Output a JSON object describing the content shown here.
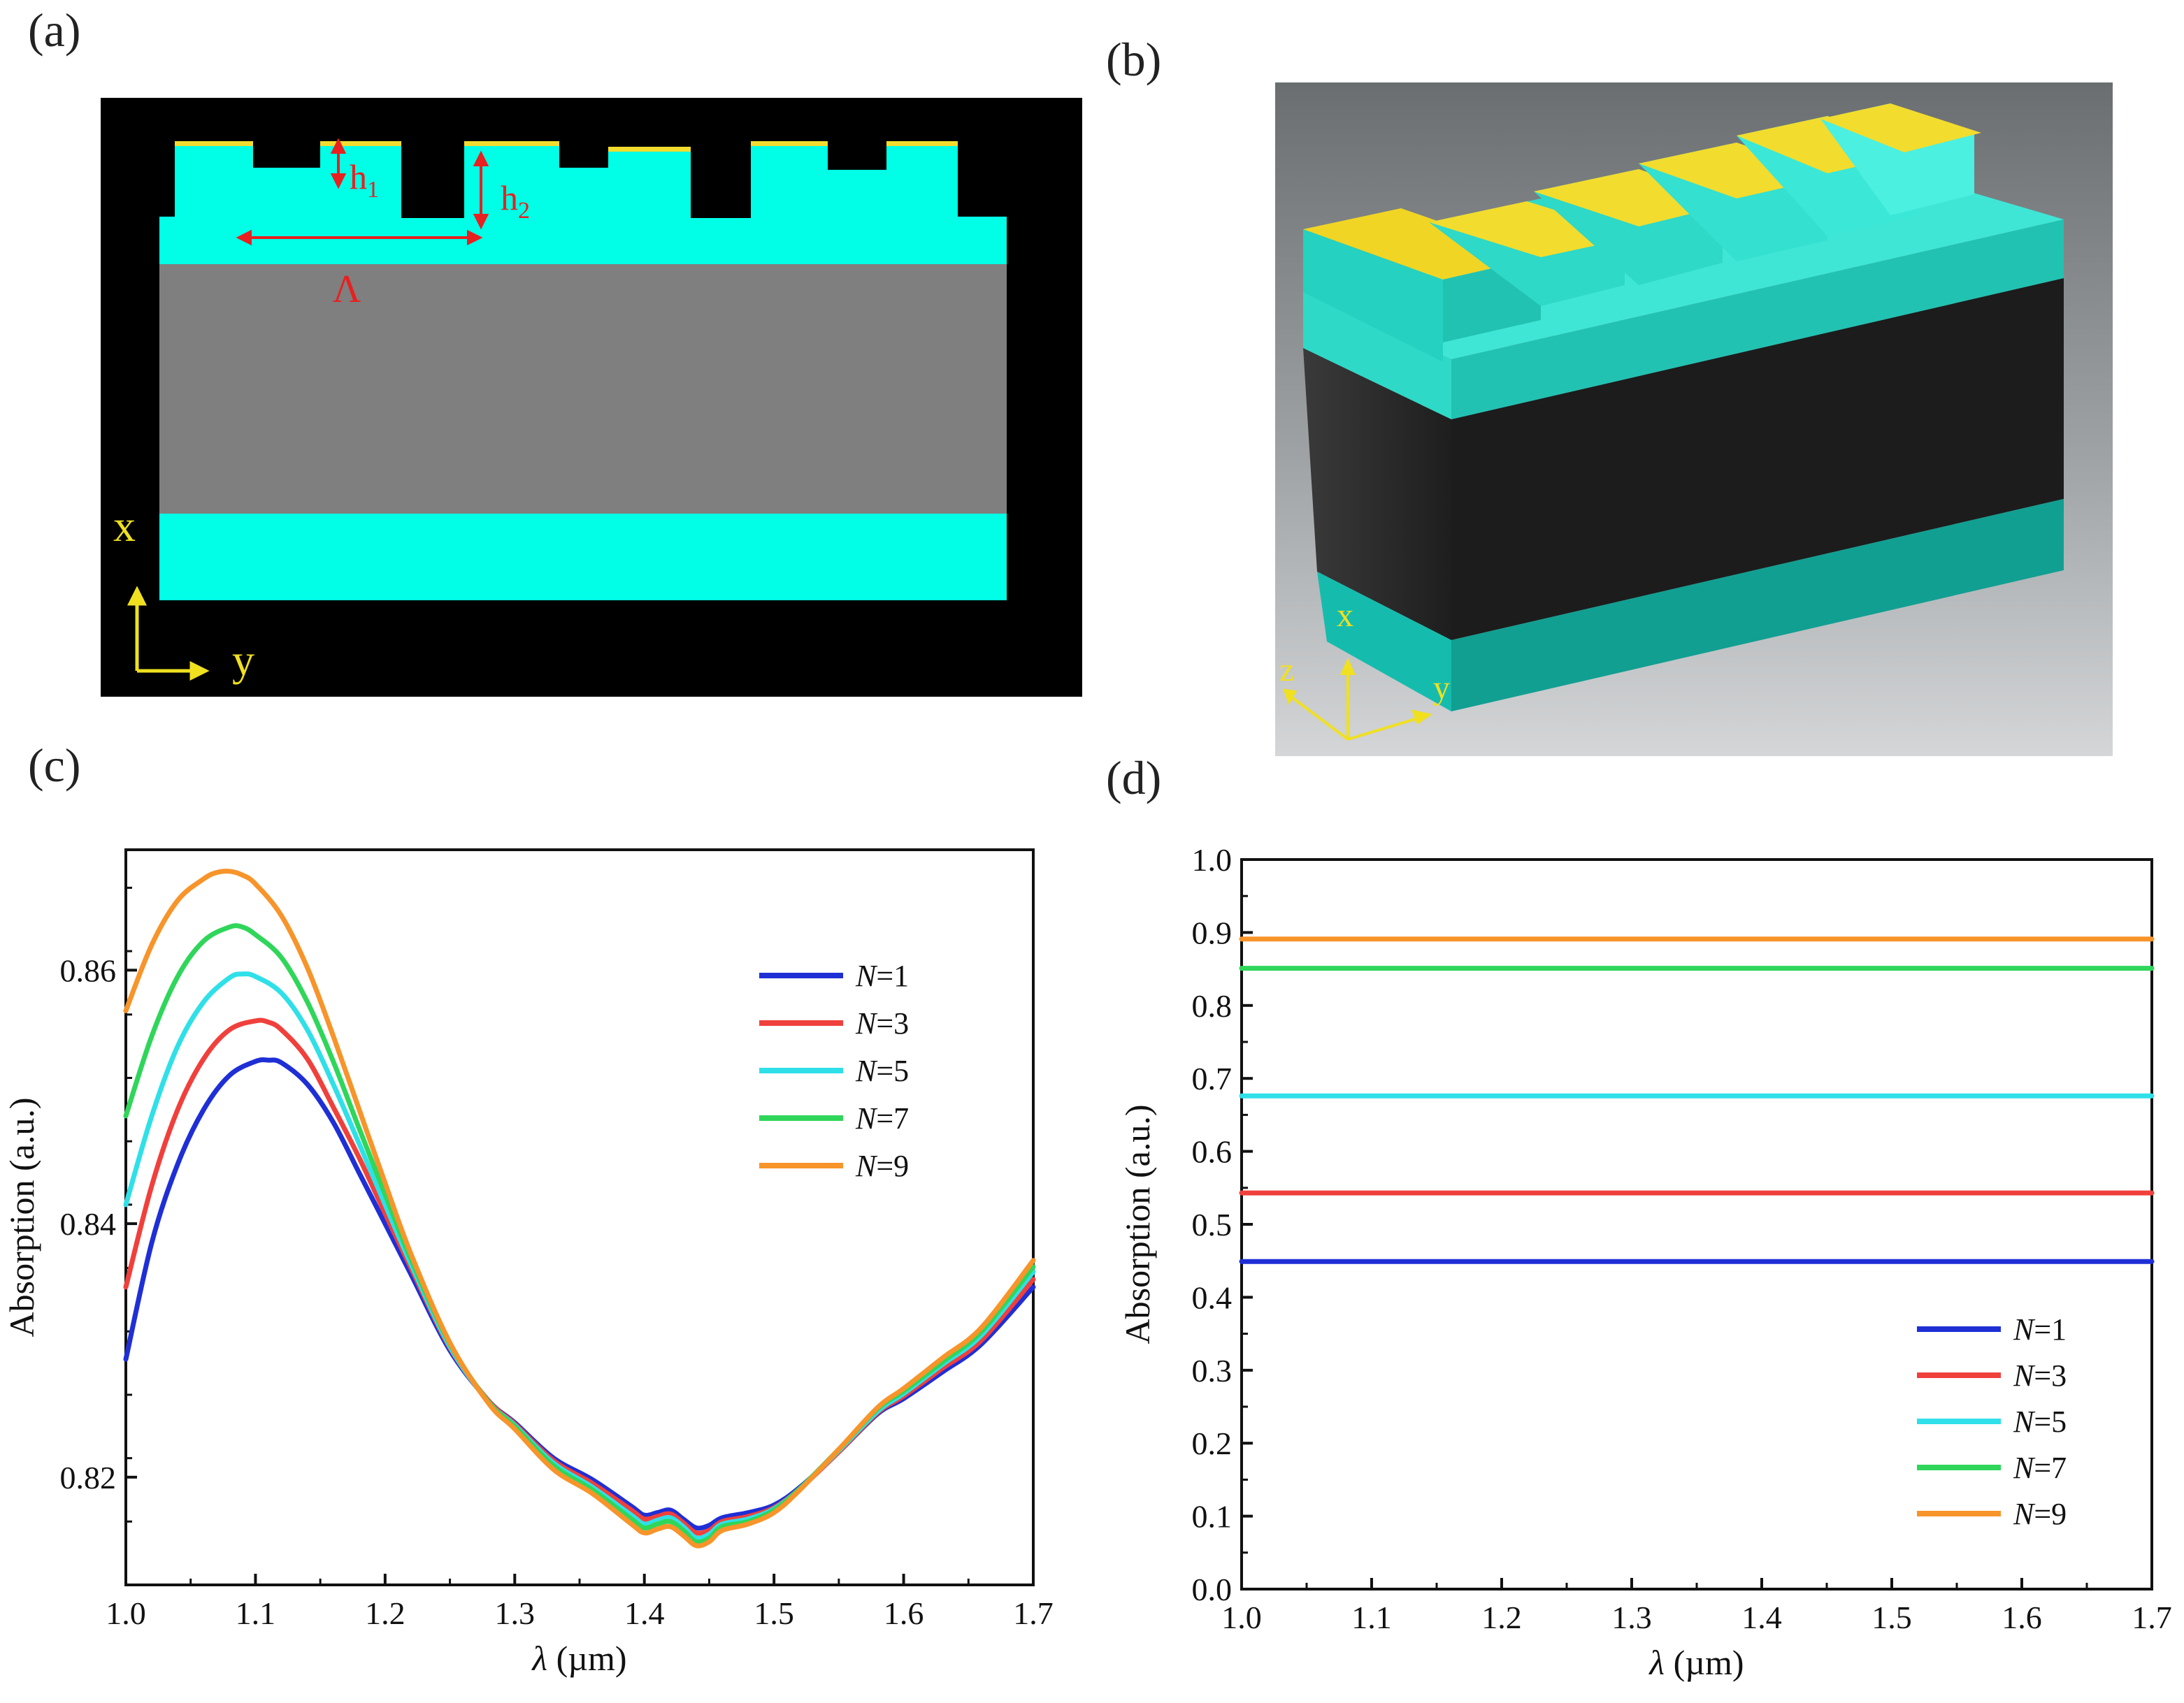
{
  "panels": {
    "a": {
      "label": "(a)",
      "annotations": {
        "h1": "h",
        "h1_sub": "1",
        "h2": "h",
        "h2_sub": "2",
        "period": "Λ",
        "x_axis": "x",
        "y_axis": "y"
      }
    },
    "b": {
      "label": "(b)",
      "annotations": {
        "x_axis": "x",
        "y_axis": "y",
        "z_axis": "z"
      }
    },
    "c": {
      "label": "(c)"
    },
    "d": {
      "label": "(d)"
    }
  },
  "colors": {
    "N1": "#1f2fd6",
    "N3": "#f0403c",
    "N5": "#2fe0e8",
    "N7": "#2fd65a",
    "N9": "#f7942a",
    "cyan": "#00ffe6",
    "gold": "#f2dc2e",
    "gray_core": "#808080",
    "black_core": "#1e1e1e",
    "annot_red": "#e82020",
    "annot_yellow": "#f0e020"
  },
  "chart_data": [
    {
      "id": "c",
      "type": "line",
      "title": "",
      "xlabel_sym": "λ",
      "xlabel_unit": " (µm)",
      "ylabel": "Absorption (a.u.)",
      "xlim": [
        1.0,
        1.7
      ],
      "ylim": [
        0.8115,
        0.8695
      ],
      "xticks": [
        "1.0",
        "1.1",
        "1.2",
        "1.3",
        "1.4",
        "1.5",
        "1.6",
        "1.7"
      ],
      "yticks": [
        0.82,
        0.84,
        0.86
      ],
      "ytick_labels": [
        "0.82",
        "0.84",
        "0.86"
      ],
      "legend_position": "right-upper",
      "series": [
        {
          "name": "N=1",
          "legend_n": "N",
          "legend_val": "=1",
          "color": "#1f2fd6",
          "x": [
            1.0,
            1.02,
            1.04,
            1.06,
            1.08,
            1.1,
            1.11,
            1.12,
            1.14,
            1.16,
            1.18,
            1.2,
            1.22,
            1.25,
            1.28,
            1.3,
            1.33,
            1.36,
            1.39,
            1.4,
            1.41,
            1.42,
            1.43,
            1.44,
            1.45,
            1.46,
            1.48,
            1.5,
            1.52,
            1.55,
            1.58,
            1.6,
            1.63,
            1.66,
            1.7
          ],
          "y": [
            0.8293,
            0.8385,
            0.8447,
            0.849,
            0.8517,
            0.8528,
            0.8529,
            0.8527,
            0.851,
            0.848,
            0.844,
            0.84,
            0.836,
            0.83,
            0.826,
            0.8243,
            0.8215,
            0.8198,
            0.8177,
            0.817,
            0.8172,
            0.8174,
            0.8167,
            0.816,
            0.8162,
            0.8168,
            0.8172,
            0.8178,
            0.8192,
            0.822,
            0.825,
            0.8262,
            0.8283,
            0.8305,
            0.835
          ]
        },
        {
          "name": "N=3",
          "legend_n": "N",
          "legend_val": "=3",
          "color": "#f0403c",
          "x": [
            1.0,
            1.02,
            1.04,
            1.06,
            1.08,
            1.1,
            1.11,
            1.12,
            1.14,
            1.16,
            1.18,
            1.2,
            1.22,
            1.25,
            1.28,
            1.3,
            1.33,
            1.36,
            1.39,
            1.4,
            1.41,
            1.42,
            1.43,
            1.44,
            1.45,
            1.46,
            1.48,
            1.5,
            1.52,
            1.55,
            1.58,
            1.6,
            1.63,
            1.66,
            1.7
          ],
          "y": [
            0.835,
            0.843,
            0.849,
            0.853,
            0.8553,
            0.856,
            0.8559,
            0.8553,
            0.853,
            0.8492,
            0.8452,
            0.8408,
            0.8365,
            0.8302,
            0.826,
            0.8242,
            0.8213,
            0.8195,
            0.8174,
            0.8167,
            0.8169,
            0.8171,
            0.8164,
            0.8156,
            0.8158,
            0.8165,
            0.8169,
            0.8176,
            0.8191,
            0.822,
            0.8251,
            0.8264,
            0.8286,
            0.8308,
            0.8356
          ]
        },
        {
          "name": "N=5",
          "legend_n": "N",
          "legend_val": "=5",
          "color": "#2fe0e8",
          "x": [
            1.0,
            1.02,
            1.04,
            1.06,
            1.08,
            1.09,
            1.1,
            1.12,
            1.14,
            1.16,
            1.18,
            1.2,
            1.22,
            1.25,
            1.28,
            1.3,
            1.33,
            1.36,
            1.39,
            1.4,
            1.41,
            1.42,
            1.43,
            1.44,
            1.45,
            1.46,
            1.48,
            1.5,
            1.52,
            1.55,
            1.58,
            1.6,
            1.63,
            1.66,
            1.7
          ],
          "y": [
            0.8415,
            0.8485,
            0.854,
            0.8575,
            0.8594,
            0.8597,
            0.8595,
            0.8582,
            0.8553,
            0.851,
            0.8463,
            0.8415,
            0.8368,
            0.8303,
            0.8259,
            0.8241,
            0.8211,
            0.8192,
            0.817,
            0.8163,
            0.8166,
            0.8168,
            0.8161,
            0.8152,
            0.8155,
            0.8163,
            0.8167,
            0.8175,
            0.8191,
            0.8221,
            0.8252,
            0.8266,
            0.8289,
            0.8312,
            0.8362
          ]
        },
        {
          "name": "N=7",
          "legend_n": "N",
          "legend_val": "=7",
          "color": "#2fd65a",
          "x": [
            1.0,
            1.02,
            1.04,
            1.06,
            1.08,
            1.09,
            1.1,
            1.12,
            1.14,
            1.16,
            1.18,
            1.2,
            1.22,
            1.25,
            1.28,
            1.3,
            1.33,
            1.36,
            1.39,
            1.4,
            1.41,
            1.42,
            1.43,
            1.44,
            1.45,
            1.46,
            1.48,
            1.5,
            1.52,
            1.55,
            1.58,
            1.6,
            1.63,
            1.66,
            1.7
          ],
          "y": [
            0.8485,
            0.8548,
            0.8595,
            0.8623,
            0.8634,
            0.8634,
            0.8628,
            0.861,
            0.8575,
            0.8528,
            0.8475,
            0.8423,
            0.8372,
            0.8305,
            0.8259,
            0.824,
            0.8209,
            0.819,
            0.8167,
            0.816,
            0.8163,
            0.8165,
            0.8158,
            0.8149,
            0.8152,
            0.8161,
            0.8165,
            0.8174,
            0.8191,
            0.8222,
            0.8254,
            0.8268,
            0.8291,
            0.8315,
            0.8366
          ]
        },
        {
          "name": "N=9",
          "legend_n": "N",
          "legend_val": "=9",
          "color": "#f7942a",
          "x": [
            1.0,
            1.02,
            1.04,
            1.06,
            1.07,
            1.08,
            1.09,
            1.1,
            1.12,
            1.14,
            1.16,
            1.18,
            1.2,
            1.22,
            1.25,
            1.28,
            1.3,
            1.33,
            1.36,
            1.39,
            1.4,
            1.41,
            1.42,
            1.43,
            1.44,
            1.45,
            1.46,
            1.48,
            1.5,
            1.52,
            1.55,
            1.58,
            1.6,
            1.63,
            1.66,
            1.7
          ],
          "y": [
            0.8568,
            0.862,
            0.8655,
            0.8672,
            0.8677,
            0.8678,
            0.8675,
            0.8668,
            0.8643,
            0.8602,
            0.8548,
            0.849,
            0.8432,
            0.8376,
            0.8306,
            0.8258,
            0.8238,
            0.8206,
            0.8187,
            0.8163,
            0.8156,
            0.8159,
            0.8161,
            0.8154,
            0.8146,
            0.8149,
            0.8158,
            0.8163,
            0.8172,
            0.819,
            0.8222,
            0.8255,
            0.827,
            0.8294,
            0.8318,
            0.8371
          ]
        }
      ]
    },
    {
      "id": "d",
      "type": "line",
      "title": "",
      "xlabel_sym": "λ",
      "xlabel_unit": " (µm)",
      "ylabel": "Absorption (a.u.)",
      "xlim": [
        1.0,
        1.7
      ],
      "ylim": [
        0.0,
        1.0
      ],
      "xticks": [
        "1.0",
        "1.1",
        "1.2",
        "1.3",
        "1.4",
        "1.5",
        "1.6",
        "1.7"
      ],
      "yticks": [
        "0.0",
        "0.1",
        "0.2",
        "0.3",
        "0.4",
        "0.5",
        "0.6",
        "0.7",
        "0.8",
        "0.9",
        "1.0"
      ],
      "legend_position": "bottom-right",
      "series": [
        {
          "name": "N=1",
          "legend_n": "N",
          "legend_val": "=1",
          "color": "#1f2fd6",
          "x": [
            1.0,
            1.7
          ],
          "y": [
            0.449,
            0.449
          ]
        },
        {
          "name": "N=3",
          "legend_n": "N",
          "legend_val": "=3",
          "color": "#f0403c",
          "x": [
            1.0,
            1.7
          ],
          "y": [
            0.543,
            0.543
          ]
        },
        {
          "name": "N=5",
          "legend_n": "N",
          "legend_val": "=5",
          "color": "#2fe0e8",
          "x": [
            1.0,
            1.7
          ],
          "y": [
            0.676,
            0.676
          ]
        },
        {
          "name": "N=7",
          "legend_n": "N",
          "legend_val": "=7",
          "color": "#2fd65a",
          "x": [
            1.0,
            1.7
          ],
          "y": [
            0.851,
            0.851
          ]
        },
        {
          "name": "N=9",
          "legend_n": "N",
          "legend_val": "=9",
          "color": "#f7942a",
          "x": [
            1.0,
            1.7
          ],
          "y": [
            0.891,
            0.891
          ]
        }
      ]
    }
  ]
}
